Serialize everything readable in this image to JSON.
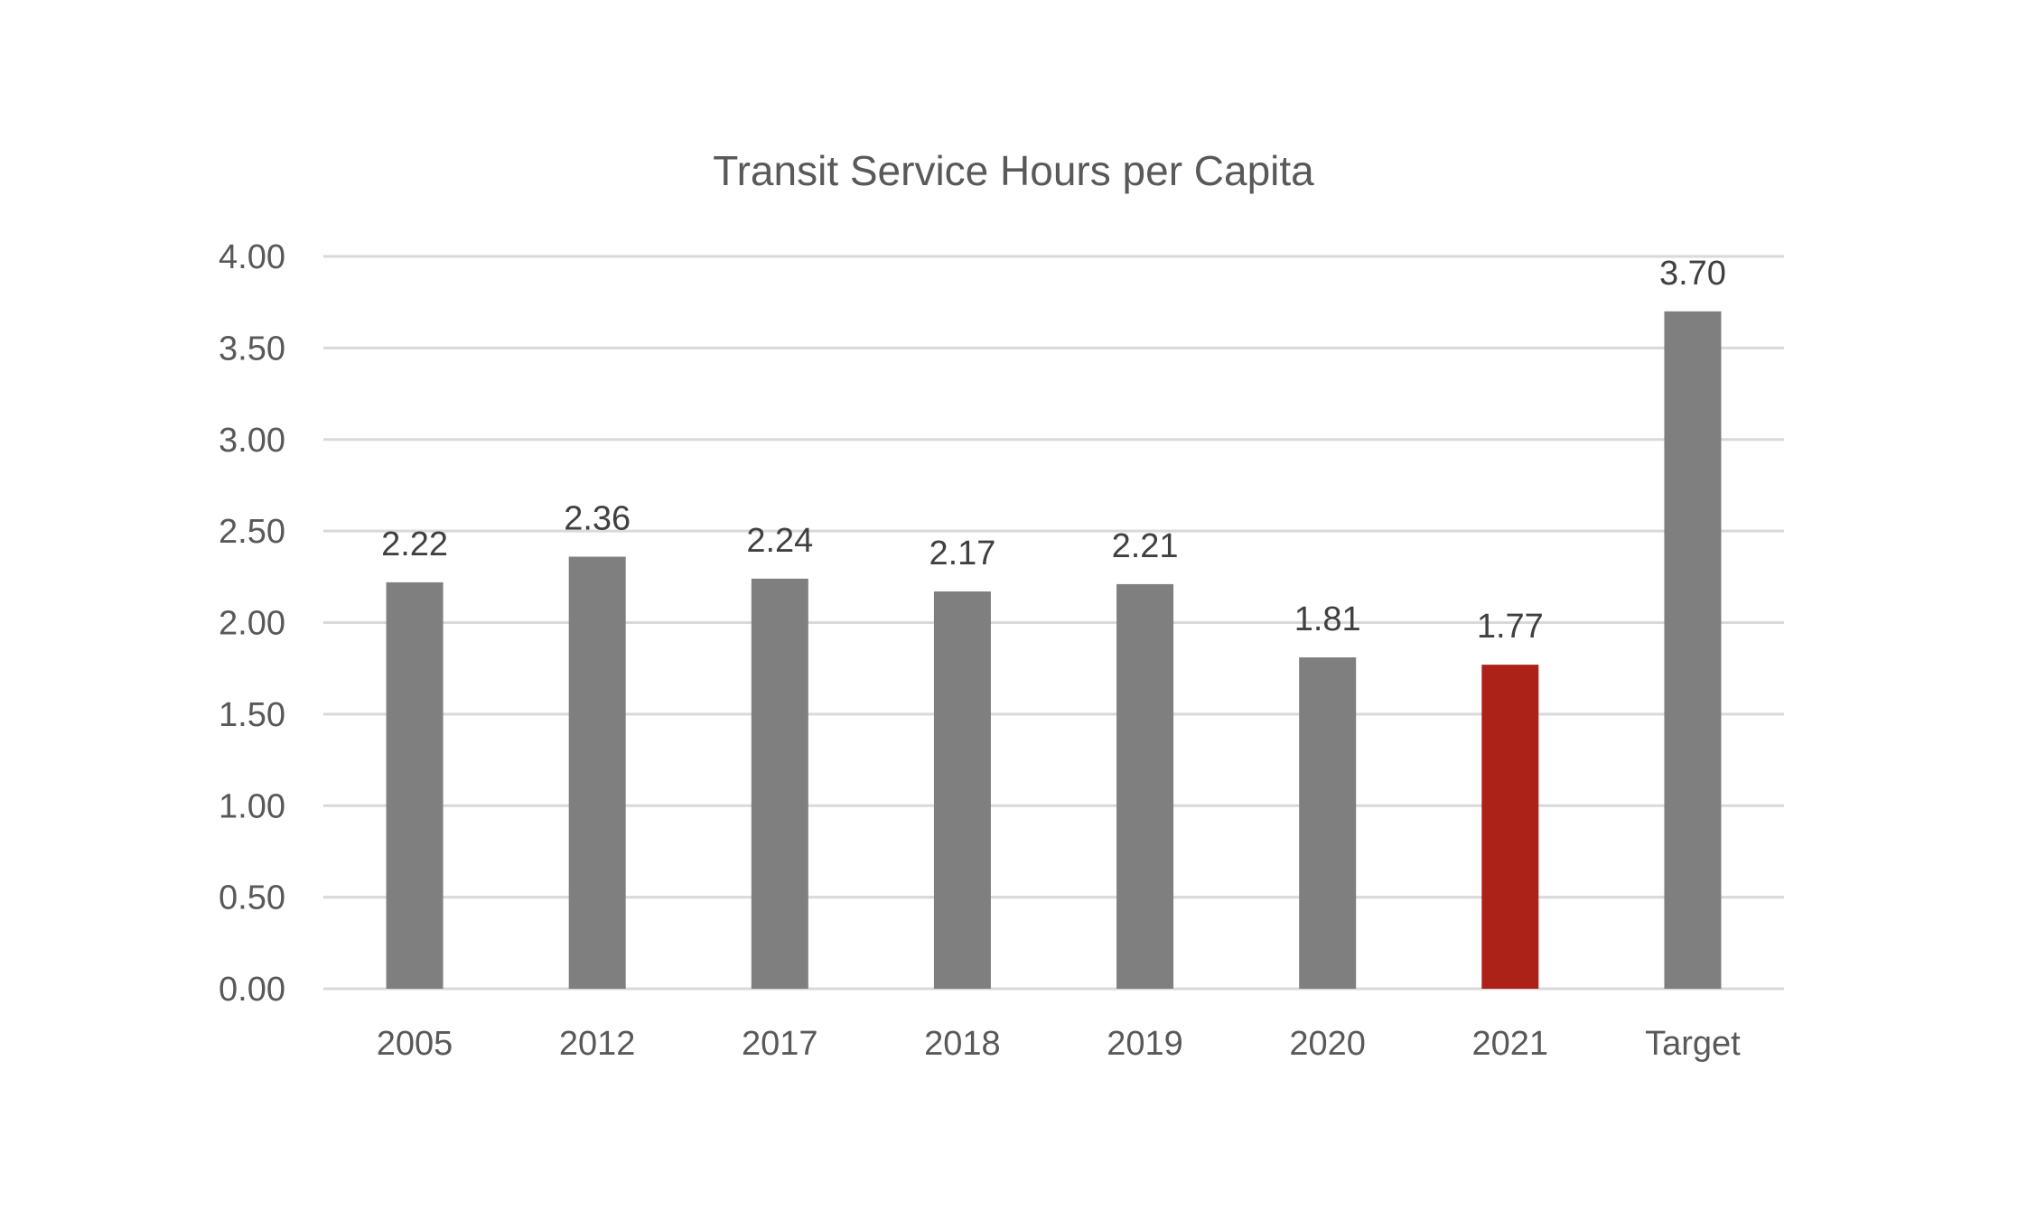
{
  "chart_data": {
    "type": "bar",
    "title": "Transit Service Hours per Capita",
    "xlabel": "",
    "ylabel": "",
    "categories": [
      "2005",
      "2012",
      "2017",
      "2018",
      "2019",
      "2020",
      "2021",
      "Target"
    ],
    "values": [
      2.22,
      2.36,
      2.24,
      2.17,
      2.21,
      1.81,
      1.77,
      3.7
    ],
    "data_labels": [
      "2.22",
      "2.36",
      "2.24",
      "2.17",
      "2.21",
      "1.81",
      "1.77",
      "3.70"
    ],
    "ylim": [
      0,
      4
    ],
    "yticks": [
      "0.00",
      "0.50",
      "1.00",
      "1.50",
      "2.00",
      "2.50",
      "3.00",
      "3.50",
      "4.00"
    ],
    "ytick_values": [
      0,
      0.5,
      1,
      1.5,
      2,
      2.5,
      3,
      3.5,
      4
    ],
    "grid": true,
    "legend": "none",
    "bar_colors": [
      "#7f7f7f",
      "#7f7f7f",
      "#7f7f7f",
      "#7f7f7f",
      "#7f7f7f",
      "#7f7f7f",
      "#ad2218",
      "#7f7f7f"
    ]
  },
  "colors": {
    "bar_default": "#7f7f7f",
    "bar_highlight": "#ad2218",
    "gridline": "#d9d9d9",
    "text": "#595959",
    "data_label_text": "#404040"
  }
}
